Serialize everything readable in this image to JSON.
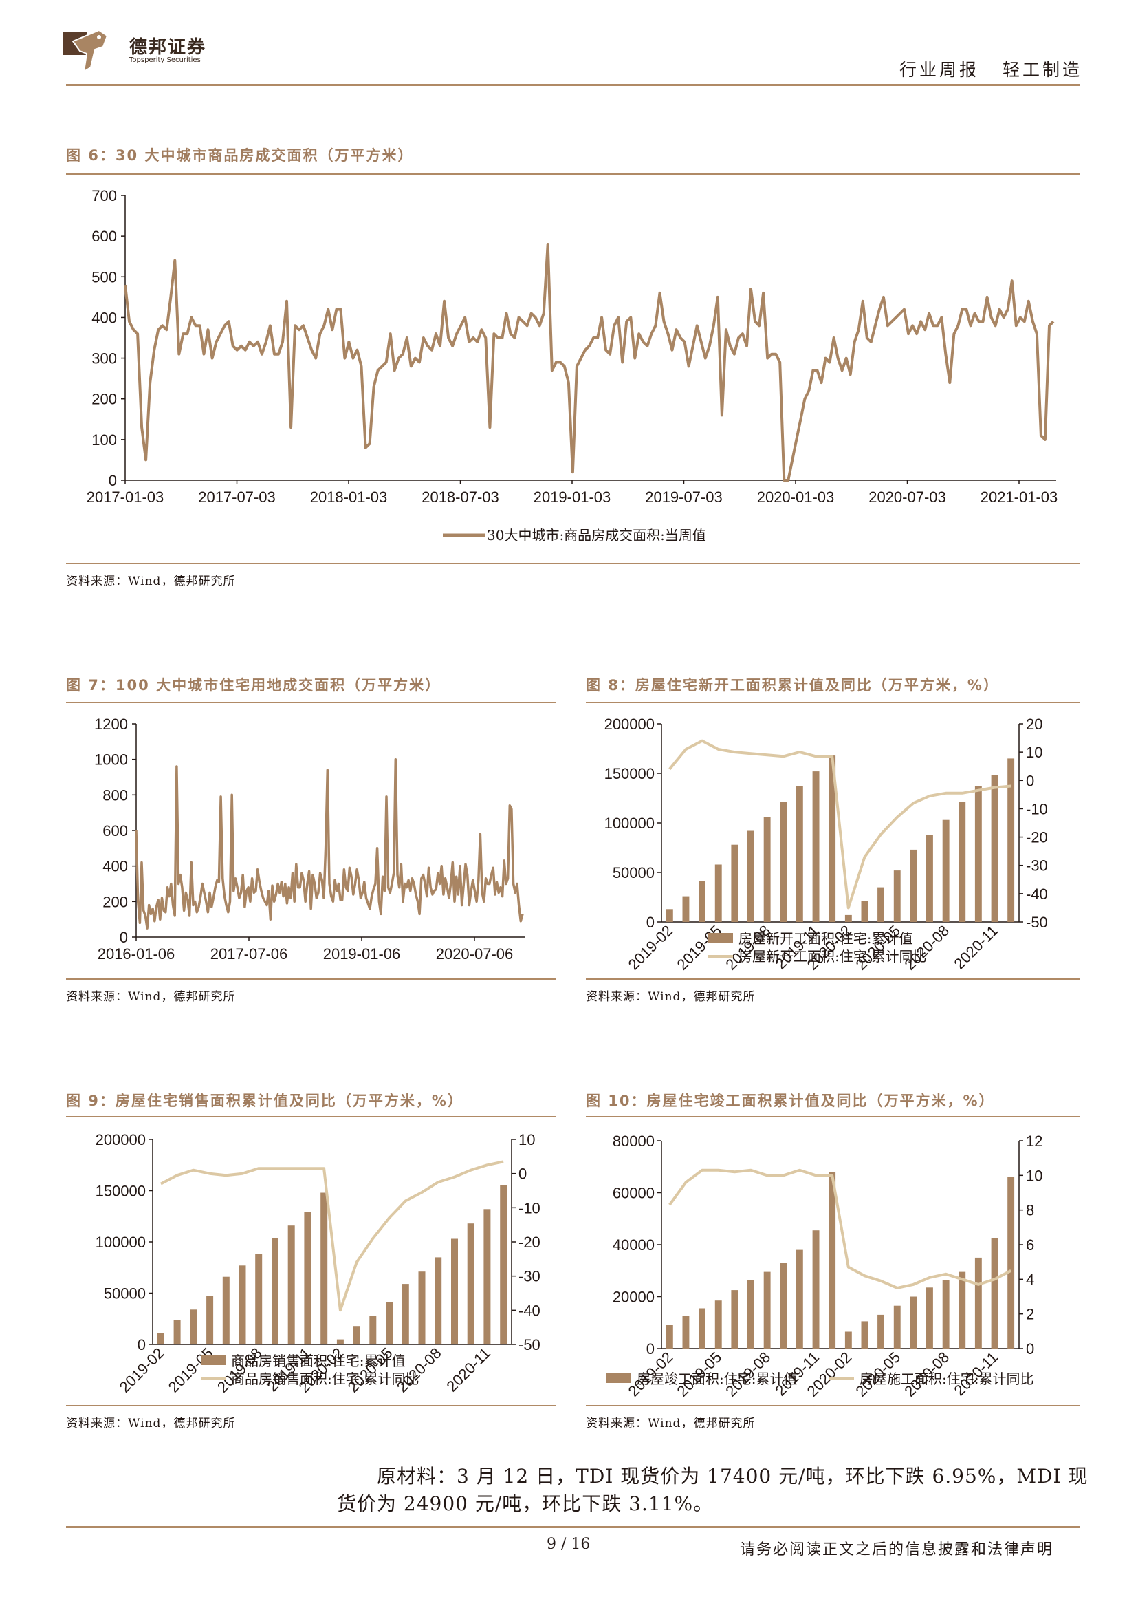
{
  "header": {
    "logo_cn": "德邦证券",
    "logo_en": "Topsperity Securities",
    "category": "行业周报",
    "industry": "轻工制造"
  },
  "fig6": {
    "title": "图 6：30 大中城市商品房成交面积（万平方米）",
    "source": "资料来源：Wind，德邦研究所"
  },
  "fig7": {
    "title": "图 7：100 大中城市住宅用地成交面积（万平方米）",
    "source": "资料来源：Wind，德邦研究所"
  },
  "fig8": {
    "title": "图 8：房屋住宅新开工面积累计值及同比（万平方米，%）",
    "source": "资料来源：Wind，德邦研究所"
  },
  "fig9": {
    "title": "图 9：房屋住宅销售面积累计值及同比（万平方米，%）",
    "source": "资料来源：Wind，德邦研究所"
  },
  "fig10": {
    "title": "图 10：房屋住宅竣工面积累计值及同比（万平方米，%）",
    "source": "资料来源：Wind，德邦研究所"
  },
  "body": {
    "line1": "原材料：3 月 12 日，TDI 现货价为 17400 元/吨，环比下跌 6.95%，MDI 现",
    "line2": "货价为 24900 元/吨，环比下跌 3.11%。"
  },
  "footer": {
    "page": "9 / 16",
    "disclaimer": "请务必阅读正文之后的信息披露和法律声明"
  },
  "colors": {
    "bar": "#a98563",
    "line": "#dcc8a4",
    "weekly": "#a98563",
    "accent": "#a07c5e"
  },
  "chart_data": [
    {
      "id": "fig6",
      "type": "line",
      "ylim": [
        0,
        700
      ],
      "yticks": [
        "0",
        "100",
        "200",
        "300",
        "400",
        "500",
        "600",
        "700"
      ],
      "xticks": [
        "2017-01-03",
        "2017-07-03",
        "2018-01-03",
        "2018-07-03",
        "2019-01-03",
        "2019-07-03",
        "2020-01-03",
        "2020-07-03",
        "2021-01-03"
      ],
      "series": [
        {
          "name": "30大中城市:商品房成交面积:当周值",
          "values": [
            480,
            390,
            370,
            360,
            130,
            50,
            240,
            320,
            370,
            380,
            370,
            450,
            540,
            310,
            360,
            360,
            400,
            380,
            380,
            310,
            370,
            300,
            340,
            360,
            380,
            390,
            330,
            320,
            330,
            320,
            340,
            330,
            340,
            310,
            340,
            380,
            310,
            310,
            340,
            440,
            130,
            380,
            370,
            380,
            350,
            320,
            300,
            360,
            380,
            420,
            370,
            420,
            420,
            300,
            340,
            300,
            320,
            280,
            80,
            90,
            230,
            270,
            280,
            290,
            360,
            270,
            300,
            310,
            350,
            280,
            300,
            290,
            350,
            330,
            320,
            360,
            330,
            440,
            350,
            330,
            360,
            380,
            400,
            340,
            350,
            340,
            370,
            350,
            130,
            360,
            350,
            350,
            410,
            360,
            350,
            400,
            390,
            380,
            410,
            400,
            380,
            410,
            580,
            270,
            290,
            290,
            280,
            240,
            20,
            280,
            300,
            320,
            330,
            350,
            350,
            400,
            320,
            310,
            380,
            400,
            290,
            390,
            400,
            300,
            360,
            340,
            330,
            360,
            380,
            460,
            390,
            360,
            320,
            370,
            350,
            340,
            280,
            330,
            380,
            340,
            300,
            330,
            380,
            450,
            160,
            370,
            330,
            310,
            350,
            360,
            330,
            470,
            390,
            380,
            460,
            300,
            310,
            310,
            290,
            0,
            0,
            50,
            100,
            150,
            200,
            220,
            270,
            270,
            240,
            300,
            290,
            350,
            300,
            270,
            300,
            260,
            340,
            370,
            440,
            350,
            340,
            380,
            420,
            450,
            380,
            390,
            400,
            410,
            420,
            360,
            380,
            360,
            390,
            370,
            410,
            380,
            380,
            400,
            310,
            240,
            360,
            380,
            420,
            420,
            380,
            410,
            390,
            390,
            450,
            400,
            380,
            420,
            400,
            420,
            490,
            380,
            400,
            390,
            440,
            390,
            360,
            110,
            100,
            380,
            390
          ]
        }
      ]
    },
    {
      "id": "fig7",
      "type": "line",
      "ylim": [
        0,
        1200
      ],
      "yticks": [
        "0",
        "200",
        "400",
        "600",
        "800",
        "1000",
        "1200"
      ],
      "xticks": [
        "2016-01-06",
        "2017-07-06",
        "2019-01-06",
        "2020-07-06"
      ],
      "series": [
        {
          "name": "",
          "values": [
            600,
            200,
            80,
            420,
            150,
            120,
            50,
            180,
            130,
            160,
            90,
            170,
            210,
            100,
            220,
            150,
            140,
            280,
            230,
            300,
            180,
            120,
            960,
            300,
            350,
            280,
            150,
            250,
            210,
            120,
            420,
            180,
            200,
            140,
            170,
            230,
            300,
            250,
            200,
            140,
            250,
            170,
            220,
            280,
            320,
            310,
            790,
            330,
            230,
            180,
            140,
            200,
            800,
            260,
            330,
            280,
            220,
            250,
            350,
            170,
            260,
            280,
            200,
            330,
            250,
            260,
            380,
            310,
            260,
            220,
            200,
            180,
            260,
            100,
            290,
            200,
            240,
            300,
            250,
            310,
            230,
            300,
            190,
            280,
            220,
            360,
            200,
            410,
            280,
            280,
            360,
            320,
            200,
            300,
            370,
            160,
            350,
            300,
            220,
            250,
            360,
            320,
            220,
            500,
            940,
            300,
            230,
            200,
            320,
            260,
            300,
            210,
            210,
            380,
            280,
            260,
            390,
            340,
            240,
            300,
            380,
            320,
            220,
            250,
            310,
            220,
            190,
            160,
            230,
            270,
            300,
            500,
            200,
            130,
            340,
            260,
            790,
            280,
            250,
            300,
            360,
            1000,
            350,
            280,
            410,
            200,
            300,
            280,
            320,
            260,
            330,
            300,
            240,
            200,
            130,
            330,
            350,
            300,
            230,
            390,
            280,
            240,
            260,
            270,
            360,
            300,
            400,
            240,
            330,
            280,
            220,
            300,
            420,
            200,
            340,
            240,
            400,
            180,
            300,
            410,
            350,
            180,
            260,
            320,
            260,
            200,
            320,
            580,
            250,
            200,
            330,
            300,
            300,
            350,
            390,
            240,
            310,
            250,
            280,
            230,
            430,
            300,
            330,
            740,
            720,
            300,
            250,
            300,
            180,
            90,
            130
          ]
        }
      ]
    },
    {
      "id": "fig8",
      "type": "bar+line",
      "categories": [
        "2019-02",
        "2019-03",
        "2019-04",
        "2019-05",
        "2019-06",
        "2019-07",
        "2019-08",
        "2019-09",
        "2019-10",
        "2019-11",
        "2019-12",
        "2020-02",
        "2020-03",
        "2020-04",
        "2020-05",
        "2020-06",
        "2020-07",
        "2020-08",
        "2020-09",
        "2020-10",
        "2020-11",
        "2020-12"
      ],
      "xticks": [
        "2019-02",
        "2019-05",
        "2019-08",
        "2019-11",
        "2020-02",
        "2020-05",
        "2020-08",
        "2020-11"
      ],
      "ylim": [
        0,
        200000
      ],
      "y2lim": [
        -50,
        20
      ],
      "yticks": [
        "0",
        "50000",
        "100000",
        "150000",
        "200000"
      ],
      "y2ticks": [
        "-50",
        "-40",
        "-30",
        "-20",
        "-10",
        "0",
        "10",
        "20"
      ],
      "series": [
        {
          "name": "房屋新开工面积:住宅:累计值",
          "type": "bar",
          "values": [
            13000,
            26000,
            41000,
            58000,
            78000,
            92000,
            106000,
            121000,
            137000,
            152000,
            168000,
            7000,
            21000,
            35000,
            52000,
            73000,
            88000,
            103000,
            121000,
            137000,
            148000,
            165000
          ]
        },
        {
          "name": "房屋新开工面积:住宅:累计同比",
          "type": "line",
          "values": [
            4,
            11,
            14,
            11,
            10,
            9.5,
            9,
            8.5,
            10,
            8.5,
            8.5,
            -45,
            -27,
            -19,
            -13,
            -8,
            -5.5,
            -4.5,
            -4.5,
            -3.5,
            -2.5,
            -2
          ]
        }
      ]
    },
    {
      "id": "fig9",
      "type": "bar+line",
      "categories": [
        "2019-02",
        "2019-03",
        "2019-04",
        "2019-05",
        "2019-06",
        "2019-07",
        "2019-08",
        "2019-09",
        "2019-10",
        "2019-11",
        "2019-12",
        "2020-02",
        "2020-03",
        "2020-04",
        "2020-05",
        "2020-06",
        "2020-07",
        "2020-08",
        "2020-09",
        "2020-10",
        "2020-11",
        "2020-12"
      ],
      "xticks": [
        "2019-02",
        "2019-05",
        "2019-08",
        "2019-11",
        "2020-02",
        "2020-05",
        "2020-08",
        "2020-11"
      ],
      "ylim": [
        0,
        200000
      ],
      "y2lim": [
        -50,
        10
      ],
      "yticks": [
        "0",
        "50000",
        "100000",
        "150000",
        "200000"
      ],
      "y2ticks": [
        "-50",
        "-40",
        "-30",
        "-20",
        "-10",
        "0",
        "10"
      ],
      "series": [
        {
          "name": "商品房销售面积:住宅:累计值",
          "type": "bar",
          "values": [
            11000,
            24000,
            34000,
            47000,
            66000,
            77000,
            88000,
            104000,
            116000,
            129000,
            148000,
            5000,
            18000,
            28000,
            41000,
            59000,
            71000,
            85000,
            103000,
            118000,
            132000,
            155000
          ]
        },
        {
          "name": "商品房销售面积:住宅:累计同比",
          "type": "line",
          "values": [
            -3,
            -0.5,
            1,
            0,
            -0.5,
            0,
            1.5,
            1.5,
            1.5,
            1.5,
            1.5,
            -40,
            -26,
            -19,
            -13,
            -8,
            -5.5,
            -2.5,
            -1,
            1,
            2.5,
            3.5
          ]
        }
      ]
    },
    {
      "id": "fig10",
      "type": "bar+line",
      "categories": [
        "2019-02",
        "2019-03",
        "2019-04",
        "2019-05",
        "2019-06",
        "2019-07",
        "2019-08",
        "2019-09",
        "2019-10",
        "2019-11",
        "2019-12",
        "2020-02",
        "2020-03",
        "2020-04",
        "2020-05",
        "2020-06",
        "2020-07",
        "2020-08",
        "2020-09",
        "2020-10",
        "2020-11",
        "2020-12"
      ],
      "xticks": [
        "2019-02",
        "2019-05",
        "2019-08",
        "2019-11",
        "2020-02",
        "2020-05",
        "2020-08",
        "2020-11"
      ],
      "ylim": [
        0,
        80000
      ],
      "y2lim": [
        0,
        12
      ],
      "yticks": [
        "0",
        "20000",
        "40000",
        "60000",
        "80000"
      ],
      "y2ticks": [
        "0",
        "2",
        "4",
        "6",
        "8",
        "10",
        "12"
      ],
      "series": [
        {
          "name": "房屋竣工面积:住宅:累计值",
          "type": "bar",
          "values": [
            9000,
            12500,
            15500,
            18500,
            22500,
            26500,
            29500,
            33000,
            38000,
            45500,
            68000,
            6500,
            10500,
            13000,
            16500,
            20000,
            23500,
            26500,
            29500,
            35000,
            42500,
            66000
          ]
        },
        {
          "name": "房屋施工面积:住宅:累计同比",
          "type": "line",
          "values": [
            8.3,
            9.6,
            10.3,
            10.3,
            10.2,
            10.3,
            10,
            10,
            10.3,
            10,
            10,
            4.7,
            4.2,
            3.9,
            3.5,
            3.7,
            4.1,
            4.3,
            4,
            3.7,
            4,
            4.5
          ]
        }
      ]
    }
  ]
}
